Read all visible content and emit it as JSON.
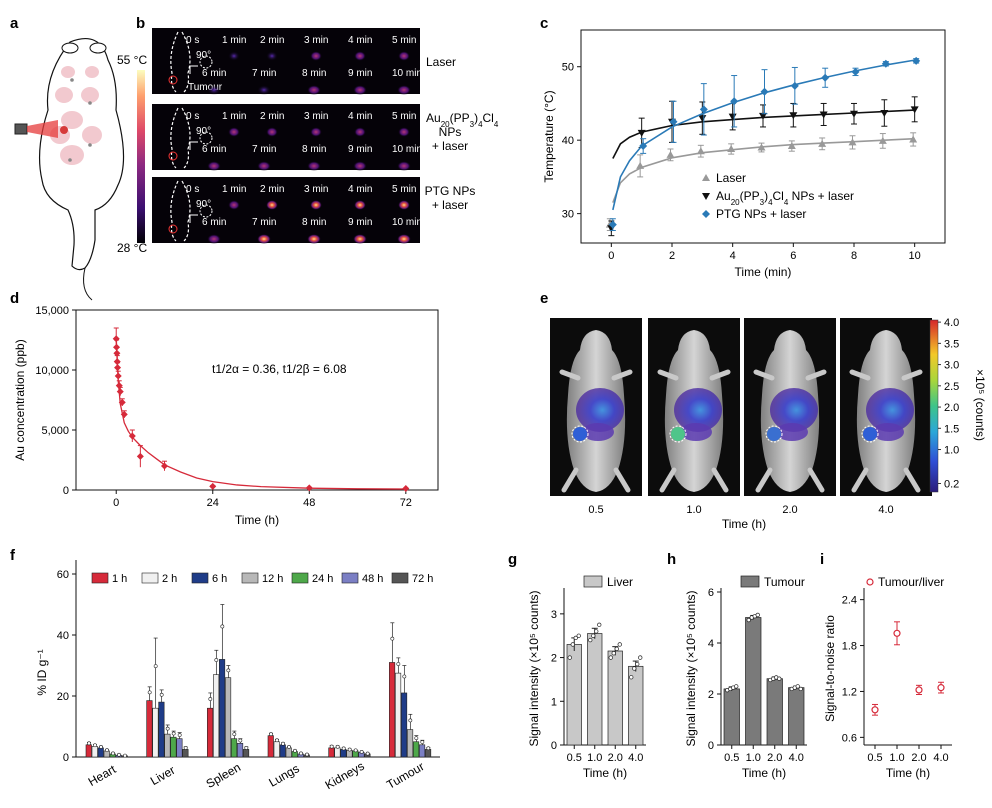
{
  "panels": {
    "a": {
      "letter": "a",
      "temp_high": "55 °C",
      "temp_low": "28 °C"
    },
    "b": {
      "letter": "b",
      "rows": [
        {
          "label_lines": [
            "Laser"
          ],
          "tumour_label": "Tumour"
        },
        {
          "label_lines": [
            "Au20(PP3)4Cl4",
            "NPs",
            "+ laser"
          ],
          "tumour_label": ""
        },
        {
          "label_lines": [
            "PTG NPs",
            "+ laser"
          ],
          "tumour_label": ""
        }
      ],
      "times_top": [
        "0 s",
        "1 min",
        "2 min",
        "3 min",
        "4 min",
        "5 min"
      ],
      "times_bottom": [
        "6 min",
        "7 min",
        "8 min",
        "9 min",
        "10 min"
      ],
      "angle": "90°"
    },
    "c": {
      "letter": "c"
    },
    "d": {
      "letter": "d",
      "annotation": "t1/2α = 0.36, t1/2β = 6.08"
    },
    "e": {
      "letter": "e",
      "xlabel": "Time (h)",
      "times": [
        "0.5",
        "1.0",
        "2.0",
        "4.0"
      ],
      "colorbar_ticks": [
        "4.0",
        "3.5",
        "3.0",
        "2.5",
        "2.0",
        "1.5",
        "1.0",
        "0.2"
      ],
      "colorbar_label": "×10⁵ (counts)"
    },
    "f": {
      "letter": "f"
    },
    "g": {
      "letter": "g"
    },
    "h": {
      "letter": "h"
    },
    "i": {
      "letter": "i"
    }
  },
  "chart_data": [
    {
      "id": "c",
      "type": "line",
      "xlabel": "Time (min)",
      "ylabel": "Temperature (°C)",
      "xlim": [
        -1,
        11
      ],
      "ylim": [
        26,
        55
      ],
      "xticks": [
        0,
        2,
        4,
        6,
        8,
        10
      ],
      "yticks": [
        30,
        40,
        50
      ],
      "series": [
        {
          "name": "Laser",
          "color": "#999999",
          "marker": "triangle-up",
          "x": [
            0,
            1,
            2,
            3,
            4,
            5,
            6,
            7,
            8,
            9,
            10
          ],
          "y": [
            28.5,
            36.5,
            38.0,
            38.5,
            38.8,
            39.0,
            39.2,
            39.5,
            39.7,
            39.9,
            40.1
          ],
          "err": [
            0.8,
            1.5,
            0.8,
            0.8,
            0.7,
            0.6,
            0.7,
            0.8,
            0.9,
            1.0,
            0.9
          ],
          "fit_x": [
            0.05,
            0.3,
            0.6,
            1,
            2,
            3,
            4,
            5,
            6,
            7,
            8,
            9,
            10
          ],
          "fit_y": [
            31.5,
            34.2,
            35.4,
            36.3,
            37.6,
            38.3,
            38.7,
            39.1,
            39.4,
            39.6,
            39.8,
            40.0,
            40.2
          ]
        },
        {
          "name": "Au20(PP3)4Cl4 NPs + laser",
          "color": "#111111",
          "marker": "triangle-down",
          "x": [
            0,
            1,
            2,
            3,
            4,
            5,
            6,
            7,
            8,
            9,
            10
          ],
          "y": [
            28.0,
            41.0,
            42.5,
            43.0,
            43.2,
            43.3,
            43.4,
            43.5,
            43.6,
            43.7,
            44.2
          ],
          "err": [
            1.0,
            2.0,
            2.8,
            2.2,
            1.8,
            1.5,
            1.6,
            1.5,
            1.4,
            1.8,
            1.7
          ],
          "fit_x": [
            0.05,
            0.3,
            0.6,
            1,
            2,
            3,
            4,
            5,
            6,
            7,
            8,
            9,
            10
          ],
          "fit_y": [
            37.5,
            39.5,
            40.4,
            41.1,
            42.0,
            42.5,
            42.8,
            43.1,
            43.3,
            43.5,
            43.7,
            43.9,
            44.1
          ]
        },
        {
          "name": "PTG NPs + laser",
          "color": "#2a7ab7",
          "marker": "diamond",
          "x": [
            0,
            1,
            2,
            3,
            4,
            5,
            6,
            7,
            8,
            9,
            10
          ],
          "y": [
            28.5,
            39.2,
            42.5,
            44.2,
            45.3,
            46.6,
            47.4,
            48.5,
            49.3,
            50.4,
            50.8
          ],
          "err": [
            0.8,
            1.0,
            2.8,
            3.5,
            3.5,
            3.0,
            2.5,
            1.3,
            0.5,
            0.3,
            0.3
          ],
          "fit_x": [
            0.05,
            0.3,
            0.6,
            1,
            2,
            3,
            4,
            5,
            6,
            7,
            8,
            9,
            10
          ],
          "fit_y": [
            30.5,
            35.0,
            37.2,
            39.2,
            41.8,
            43.6,
            45.1,
            46.4,
            47.5,
            48.5,
            49.4,
            50.2,
            50.9
          ]
        }
      ]
    },
    {
      "id": "d",
      "type": "scatter",
      "xlabel": "Time (h)",
      "ylabel": "Au concentration (ppb)",
      "xlim": [
        -10,
        80
      ],
      "ylim": [
        0,
        15000
      ],
      "xticks": [
        0,
        24,
        48,
        72
      ],
      "yticks": [
        0,
        5000,
        10000,
        15000
      ],
      "ytick_labels": [
        "0",
        "5,000",
        "10,000",
        "15,000"
      ],
      "color": "#d62a3a",
      "x": [
        0,
        0.08,
        0.17,
        0.25,
        0.33,
        0.5,
        0.75,
        1,
        1.5,
        2,
        4,
        6,
        12,
        24,
        48,
        72
      ],
      "y": [
        12600,
        11900,
        11400,
        10700,
        10200,
        9500,
        8700,
        8200,
        7300,
        6300,
        4500,
        2800,
        2000,
        300,
        180,
        120
      ],
      "err": [
        900,
        600,
        500,
        500,
        400,
        400,
        400,
        350,
        300,
        300,
        500,
        900,
        400,
        80,
        40,
        30
      ],
      "fit_x": [
        0,
        0.5,
        1,
        2,
        3,
        4,
        6,
        8,
        10,
        12,
        16,
        20,
        24,
        30,
        36,
        48,
        60,
        72
      ],
      "fit_y": [
        12600,
        9100,
        7200,
        5600,
        4900,
        4400,
        3700,
        3100,
        2600,
        2100,
        1500,
        1000,
        700,
        420,
        280,
        150,
        100,
        80
      ]
    },
    {
      "id": "f",
      "type": "bar",
      "ylabel": "% ID g⁻¹",
      "ylim": [
        0,
        60
      ],
      "yticks": [
        0,
        20,
        40,
        60
      ],
      "categories": [
        "Heart",
        "Liver",
        "Spleen",
        "Lungs",
        "Kidneys",
        "Tumour"
      ],
      "series": [
        {
          "name": "1 h",
          "color": "#d62a3a",
          "values": [
            4.0,
            18.5,
            16.0,
            7.0,
            3.0,
            31.0
          ],
          "err": [
            0.8,
            4.5,
            5.0,
            0.8,
            0.7,
            13.0
          ]
        },
        {
          "name": "2 h",
          "color": "#f0f0f0",
          "values": [
            3.5,
            16.0,
            27.0,
            5.0,
            3.0,
            27.5
          ],
          "err": [
            0.6,
            23.0,
            8.0,
            0.8,
            0.6,
            5.0
          ]
        },
        {
          "name": "6 h",
          "color": "#1f3c88",
          "values": [
            3.0,
            18.0,
            32.0,
            4.0,
            2.5,
            21.0
          ],
          "err": [
            0.5,
            4.0,
            18.0,
            0.6,
            0.5,
            9.0
          ]
        },
        {
          "name": "12 h",
          "color": "#b8b8b8",
          "values": [
            2.0,
            7.5,
            26.0,
            3.0,
            2.2,
            9.0
          ],
          "err": [
            0.4,
            3.0,
            4.0,
            0.5,
            0.4,
            5.0
          ]
        },
        {
          "name": "24 h",
          "color": "#4ea84a",
          "values": [
            1.0,
            6.5,
            6.0,
            1.8,
            2.0,
            5.0
          ],
          "err": [
            0.3,
            2.0,
            2.5,
            0.4,
            0.3,
            2.0
          ]
        },
        {
          "name": "48 h",
          "color": "#7b7fc4",
          "values": [
            0.6,
            6.0,
            4.5,
            1.0,
            1.5,
            4.0
          ],
          "err": [
            0.2,
            2.0,
            1.5,
            0.3,
            0.3,
            1.5
          ]
        },
        {
          "name": "72 h",
          "color": "#555555",
          "values": [
            0.4,
            2.5,
            2.5,
            0.7,
            1.0,
            2.5
          ],
          "err": [
            0.1,
            0.8,
            0.8,
            0.2,
            0.2,
            0.6
          ]
        }
      ]
    },
    {
      "id": "g",
      "type": "bar",
      "legend": "Liver",
      "color": "#c8c8c8",
      "xlabel": "Time (h)",
      "ylabel": "Signal intensity (×10⁵ counts)",
      "ylim": [
        0,
        3.5
      ],
      "yticks": [
        0,
        1,
        2,
        3
      ],
      "categories": [
        "0.5",
        "1.0",
        "2.0",
        "4.0"
      ],
      "values": [
        2.3,
        2.55,
        2.15,
        1.8
      ],
      "err": [
        0.15,
        0.12,
        0.1,
        0.12
      ],
      "points": [
        [
          2.0,
          2.3,
          2.45,
          2.5
        ],
        [
          2.4,
          2.5,
          2.6,
          2.75
        ],
        [
          2.0,
          2.1,
          2.2,
          2.3
        ],
        [
          1.55,
          1.75,
          1.85,
          2.0
        ]
      ]
    },
    {
      "id": "h",
      "type": "bar",
      "legend": "Tumour",
      "color": "#7a7a7a",
      "xlabel": "Time (h)",
      "ylabel": "Signal intensity (×10⁵ counts)",
      "ylim": [
        0,
        6
      ],
      "yticks": [
        0,
        2,
        4,
        6
      ],
      "categories": [
        "0.5",
        "1.0",
        "2.0",
        "4.0"
      ],
      "values": [
        2.2,
        5.0,
        2.6,
        2.25
      ],
      "err": [
        0.08,
        0.08,
        0.07,
        0.06
      ],
      "points": [
        [
          2.15,
          2.2,
          2.25,
          2.3
        ],
        [
          4.9,
          5.0,
          5.05,
          5.1
        ],
        [
          2.55,
          2.6,
          2.65,
          2.6
        ],
        [
          2.2,
          2.25,
          2.3,
          2.2
        ]
      ]
    },
    {
      "id": "i",
      "type": "scatter",
      "legend": "Tumour/liver",
      "color": "#d62a3a",
      "xlabel": "Time (h)",
      "ylabel": "Signal-to-noise ratio",
      "ylim": [
        0.5,
        2.5
      ],
      "yticks": [
        0.6,
        1.2,
        1.8,
        2.4
      ],
      "categories": [
        "0.5",
        "1.0",
        "2.0",
        "4.0"
      ],
      "values": [
        0.96,
        1.96,
        1.22,
        1.25
      ],
      "err": [
        0.07,
        0.15,
        0.06,
        0.07
      ]
    }
  ]
}
